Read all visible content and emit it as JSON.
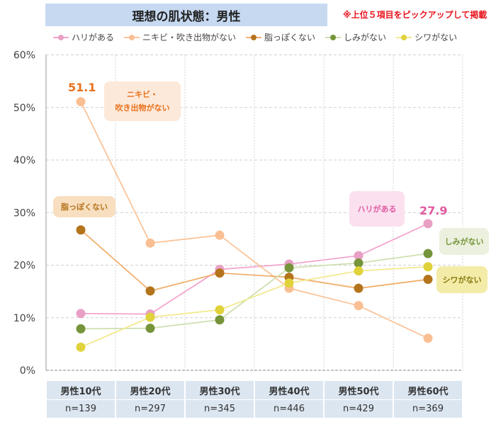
{
  "title": "理想の肌状態：男性",
  "note": "※上位５項目をピックアップして掲載",
  "chart_data": {
    "type": "line",
    "title": "理想の肌状態：男性",
    "categories": [
      "男性10代",
      "男性20代",
      "男性30代",
      "男性40代",
      "男性50代",
      "男性60代"
    ],
    "sample_sizes": [
      "n=139",
      "n=297",
      "n=345",
      "n=446",
      "n=429",
      "n=369"
    ],
    "ylim": [
      0,
      60
    ],
    "yticks": [
      "0%",
      "10%",
      "20%",
      "30%",
      "40%",
      "50%",
      "60%"
    ],
    "grid": true,
    "legend_placement": "top",
    "series": [
      {
        "name": "ハリがある",
        "color": "#f4a6d0",
        "marker": "#e8a0c4",
        "values": [
          10.8,
          10.7,
          19.2,
          20.2,
          21.8,
          27.9
        ]
      },
      {
        "name": "ニキビ・吹き出物がない",
        "color": "#fbc49a",
        "marker": "#f9bf93",
        "values": [
          51.1,
          24.2,
          25.7,
          15.6,
          12.3,
          6.1
        ]
      },
      {
        "name": "脂っぽくない",
        "color": "#f0b070",
        "marker": "#b4741c",
        "values": [
          26.7,
          15.1,
          18.5,
          17.7,
          15.6,
          17.3
        ]
      },
      {
        "name": "しみがない",
        "color": "#cfdfb0",
        "marker": "#76943a",
        "values": [
          7.9,
          8.0,
          9.6,
          19.5,
          20.4,
          22.2
        ]
      },
      {
        "name": "シワがない",
        "color": "#f2ea90",
        "marker": "#e0d23a",
        "values": [
          4.4,
          10.1,
          11.5,
          16.6,
          18.9,
          19.7
        ]
      }
    ],
    "annotations": {
      "value_labels": [
        {
          "text": "51.1",
          "color": "#e8711e"
        },
        {
          "text": "27.9",
          "color": "#e05aa0"
        }
      ],
      "callouts": [
        {
          "text": "ニキビ・\n吹き出物がない",
          "bg": "#fde9d9",
          "color": "#e8711e"
        },
        {
          "text": "脂っぽくない",
          "bg": "#f8dfc0",
          "color": "#b4741c"
        },
        {
          "text": "ハリがある",
          "bg": "#fbe0ef",
          "color": "#e05aa0"
        },
        {
          "text": "しみがない",
          "bg": "#ebf1de",
          "color": "#76943a"
        },
        {
          "text": "シワがない",
          "bg": "#f3eca8",
          "color": "#8a7a10"
        }
      ]
    }
  }
}
